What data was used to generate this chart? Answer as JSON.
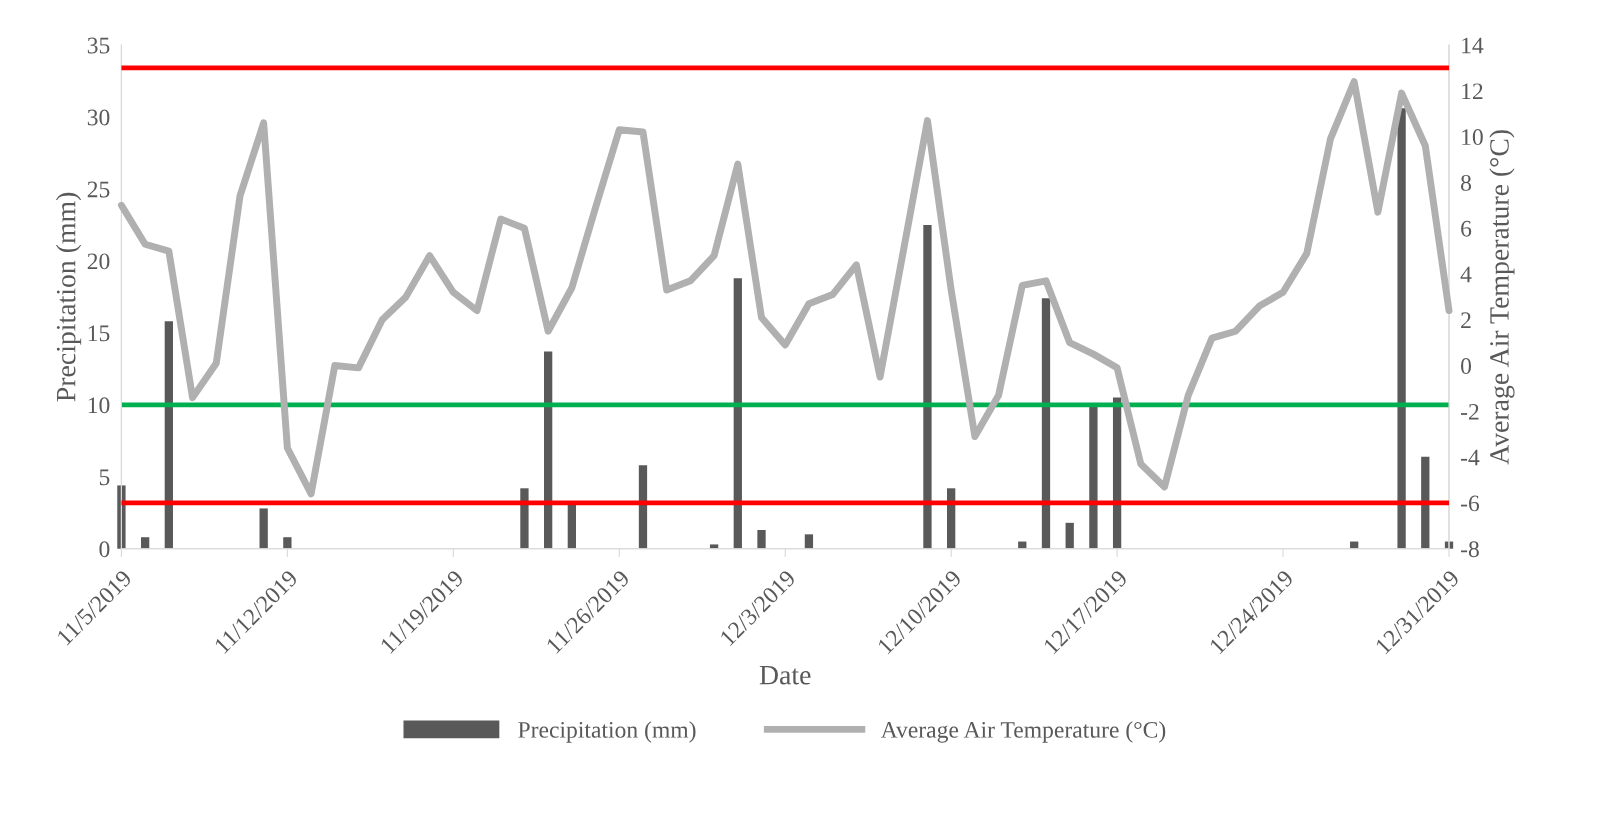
{
  "chart_data": {
    "type": "bar",
    "xlabel": "Date",
    "ylabel": "Precipitation (mm)",
    "y2label": "Average Air Temperature (°C)",
    "x": [
      "2019-11-05",
      "2019-11-06",
      "2019-11-07",
      "2019-11-08",
      "2019-11-09",
      "2019-11-10",
      "2019-11-11",
      "2019-11-12",
      "2019-11-13",
      "2019-11-14",
      "2019-11-15",
      "2019-11-16",
      "2019-11-17",
      "2019-11-18",
      "2019-11-19",
      "2019-11-20",
      "2019-11-21",
      "2019-11-22",
      "2019-11-23",
      "2019-11-24",
      "2019-11-25",
      "2019-11-26",
      "2019-11-27",
      "2019-11-28",
      "2019-11-29",
      "2019-11-30",
      "2019-12-01",
      "2019-12-02",
      "2019-12-03",
      "2019-12-04",
      "2019-12-05",
      "2019-12-06",
      "2019-12-07",
      "2019-12-08",
      "2019-12-09",
      "2019-12-10",
      "2019-12-11",
      "2019-12-12",
      "2019-12-13",
      "2019-12-14",
      "2019-12-15",
      "2019-12-16",
      "2019-12-17",
      "2019-12-18",
      "2019-12-19",
      "2019-12-20",
      "2019-12-21",
      "2019-12-22",
      "2019-12-23",
      "2019-12-24",
      "2019-12-25",
      "2019-12-26",
      "2019-12-27",
      "2019-12-28",
      "2019-12-29",
      "2019-12-30",
      "2019-12-31"
    ],
    "series": [
      {
        "name": "Precipitation (mm)",
        "color": "#595959",
        "values": [
          4.4,
          0.8,
          15.8,
          0,
          0,
          0,
          2.8,
          0.8,
          0,
          0,
          0,
          0,
          0,
          0,
          0,
          0,
          0,
          4.2,
          13.7,
          3.1,
          0,
          0,
          5.8,
          0,
          0,
          0.3,
          18.8,
          1.3,
          0,
          1.0,
          0,
          0,
          0,
          0,
          22.5,
          4.2,
          0,
          0,
          0.5,
          17.4,
          1.8,
          10.1,
          10.5,
          0,
          0,
          0,
          0,
          0,
          0,
          0,
          0,
          0,
          0.5,
          0,
          30.6,
          6.4,
          0.5
        ]
      },
      {
        "name": "Average Air Temperature (°C)",
        "type": "line",
        "axis": "y2",
        "color": "#b0b0b0",
        "values": [
          7.0,
          5.3,
          5.0,
          -1.4,
          0.1,
          7.4,
          10.6,
          -3.6,
          -5.6,
          0.0,
          -0.1,
          2.0,
          3.0,
          4.8,
          3.2,
          2.4,
          6.4,
          6.0,
          1.5,
          3.4,
          6.9,
          10.3,
          10.2,
          3.3,
          3.7,
          4.8,
          8.8,
          2.1,
          0.9,
          2.7,
          3.1,
          4.4,
          -0.5,
          5.1,
          10.7,
          3.3,
          -3.1,
          -1.3,
          3.5,
          3.7,
          1.0,
          0.5,
          -0.1,
          -4.3,
          -5.3,
          -1.3,
          1.2,
          1.5,
          2.6,
          3.2,
          4.9,
          9.9,
          12.4,
          6.7,
          11.9,
          9.6,
          2.4
        ]
      }
    ],
    "xlim": [
      "2019-11-05",
      "2019-12-31"
    ],
    "xticks": [
      {
        "value": "2019-11-05",
        "label": "11/5/2019"
      },
      {
        "value": "2019-11-12",
        "label": "11/12/2019"
      },
      {
        "value": "2019-11-19",
        "label": "11/19/2019"
      },
      {
        "value": "2019-11-26",
        "label": "11/26/2019"
      },
      {
        "value": "2019-12-03",
        "label": "12/3/2019"
      },
      {
        "value": "2019-12-10",
        "label": "12/10/2019"
      },
      {
        "value": "2019-12-17",
        "label": "12/17/2019"
      },
      {
        "value": "2019-12-24",
        "label": "12/24/2019"
      },
      {
        "value": "2019-12-31",
        "label": "12/31/2019"
      }
    ],
    "ylim": [
      0,
      35
    ],
    "yticks": [
      0,
      5,
      10,
      15,
      20,
      25,
      30,
      35
    ],
    "y2lim": [
      -8,
      14
    ],
    "y2ticks": [
      -8,
      -6,
      -4,
      -2,
      0,
      2,
      4,
      6,
      8,
      10,
      12,
      14
    ],
    "ref_lines": [
      {
        "axis": "y2",
        "value": 13,
        "color": "#ff0000"
      },
      {
        "axis": "y2",
        "value": -6,
        "color": "#ff0000"
      },
      {
        "axis": "y",
        "value": 10,
        "color": "#00b050"
      }
    ],
    "grid": false,
    "legend": "bottom"
  }
}
